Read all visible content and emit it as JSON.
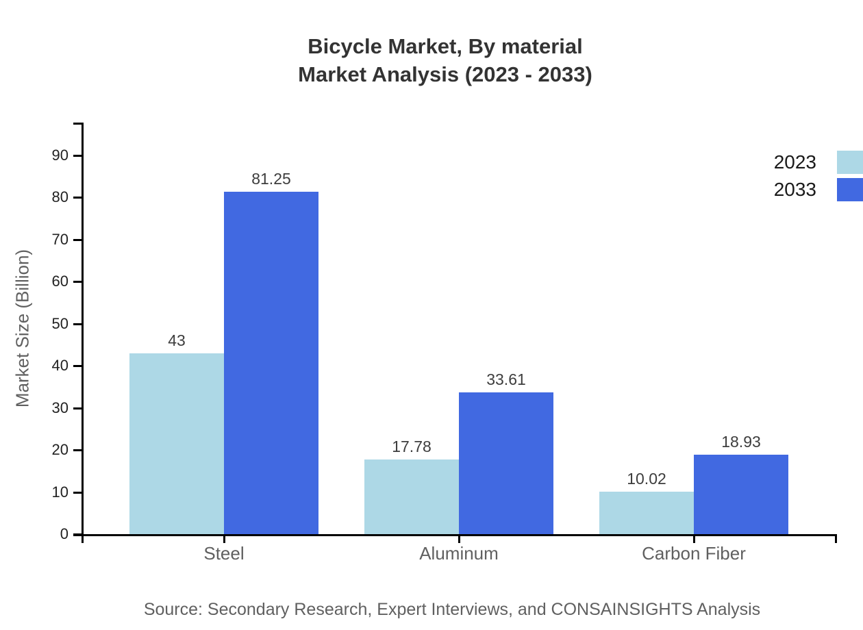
{
  "title": {
    "line1": "Bicycle Market, By material",
    "line2": "Market Analysis (2023 - 2033)"
  },
  "source": "Source: Secondary Research, Expert Interviews, and CONSAINSIGHTS Analysis",
  "chart_data": {
    "type": "bar",
    "title": "Bicycle Market, By material Market Analysis (2023 - 2033)",
    "categories": [
      "Steel",
      "Aluminum",
      "Carbon Fiber"
    ],
    "series": [
      {
        "name": "2023",
        "color": "#ADD8E6",
        "values": [
          43,
          17.78,
          10.02
        ],
        "value_labels": [
          "43",
          "17.78",
          "10.02"
        ]
      },
      {
        "name": "2033",
        "color": "#4169E1",
        "values": [
          81.25,
          33.61,
          18.93
        ],
        "value_labels": [
          "81.25",
          "33.61",
          "18.93"
        ]
      }
    ],
    "xlabel": "",
    "ylabel": "Market Size (Billion)",
    "ylim": [
      0,
      97.5
    ],
    "yticks": [
      0,
      10,
      20,
      30,
      40,
      50,
      60,
      70,
      80,
      90
    ],
    "grid": false,
    "legend_position": "top-right",
    "bar_value_labels_shown": true
  },
  "colors": {
    "background": "#FFFFFF",
    "axis": "#000000",
    "title_text": "#333333",
    "tick_label_text": "#222222",
    "value_label_text": "#3D3D3D",
    "muted_text": "#606060",
    "legend_text": "#1A1A1A",
    "series_2023": "#ADD8E6",
    "series_2033": "#4169E1"
  }
}
